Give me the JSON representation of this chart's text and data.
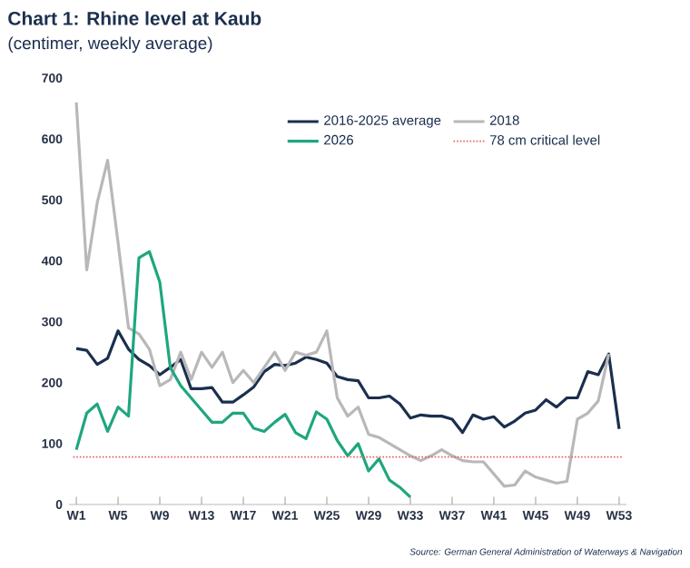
{
  "chart_data": {
    "type": "line",
    "title": "Chart 1: Rhine level at Kaub",
    "subtitle": "(centimer, weekly average)",
    "annotations": [
      "Source: German General Administration of Waterways & Navigation"
    ],
    "categories": [
      "W1",
      null,
      null,
      null,
      "W5",
      null,
      null,
      null,
      "W9",
      null,
      null,
      null,
      "W13",
      null,
      null,
      null,
      "W17",
      null,
      null,
      null,
      "W21",
      null,
      null,
      null,
      "W25",
      null,
      null,
      null,
      "W29",
      null,
      null,
      null,
      "W33",
      null,
      null,
      null,
      "W37",
      null,
      null,
      null,
      "W41",
      null,
      null,
      null,
      "W45",
      null,
      null,
      null,
      "W49",
      null,
      null,
      null,
      "W53"
    ],
    "series": [
      {
        "name": "2016-2025 average",
        "color": "#1b2f4e",
        "values": [
          256,
          253,
          230,
          240,
          285,
          255,
          238,
          228,
          213,
          225,
          238,
          190,
          190,
          192,
          168,
          168,
          180,
          193,
          218,
          230,
          228,
          232,
          242,
          238,
          232,
          210,
          205,
          203,
          175,
          175,
          178,
          165,
          142,
          147,
          145,
          145,
          140,
          118,
          147,
          140,
          144,
          127,
          137,
          150,
          155,
          172,
          160,
          175,
          175,
          218,
          213,
          247,
          124
        ]
      },
      {
        "name": "2018",
        "color": "#b8b8b8",
        "values": [
          660,
          385,
          495,
          565,
          430,
          290,
          280,
          255,
          195,
          205,
          250,
          205,
          250,
          225,
          250,
          200,
          220,
          200,
          225,
          250,
          220,
          250,
          245,
          250,
          285,
          175,
          145,
          160,
          115,
          110,
          100,
          90,
          80,
          72,
          80,
          90,
          80,
          72,
          70,
          70,
          50,
          30,
          32,
          55,
          45,
          40,
          35,
          38,
          140,
          150,
          170,
          247,
          null
        ]
      },
      {
        "name": "2026",
        "color": "#1fa67f",
        "values": [
          90,
          150,
          165,
          120,
          160,
          145,
          405,
          415,
          365,
          225,
          195,
          175,
          155,
          135,
          135,
          150,
          150,
          125,
          120,
          135,
          148,
          118,
          108,
          152,
          140,
          105,
          80,
          100,
          55,
          75,
          40,
          28,
          12,
          null,
          null,
          null,
          null,
          null,
          null,
          null,
          null,
          null,
          null,
          null,
          null,
          null,
          null,
          null,
          null,
          null,
          null,
          null,
          null
        ]
      }
    ],
    "ylim": [
      0,
      700
    ],
    "yticks": [
      0,
      100,
      200,
      300,
      400,
      500,
      600,
      700
    ],
    "ref_lines": [
      {
        "axis": "y",
        "value": 78,
        "label": "78 cm critical level",
        "color": "#e06060",
        "line_style": "dotted"
      }
    ],
    "legend": "top right"
  }
}
